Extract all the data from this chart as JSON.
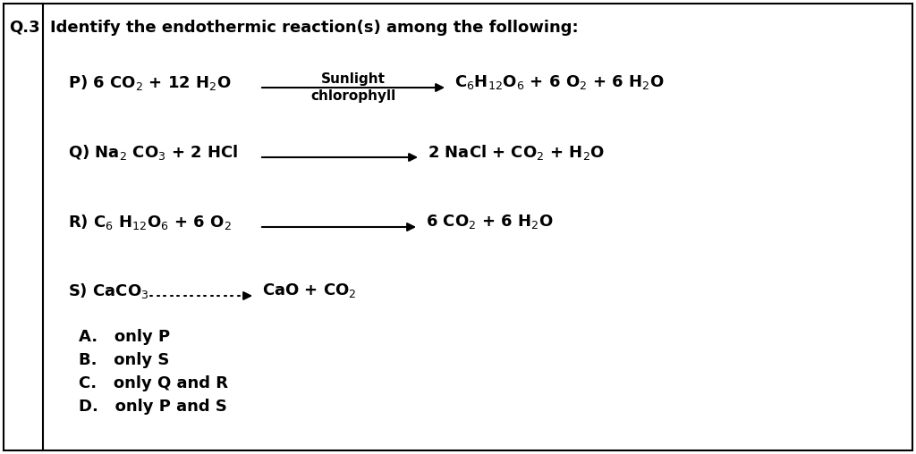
{
  "title": "Q.3",
  "question": "Identify the endothermic reaction(s) among the following:",
  "bg_color": "#ffffff",
  "border_color": "#000000",
  "text_color": "#000000",
  "options": [
    "A.   only P",
    "B.   only S",
    "C.   only Q and R",
    "D.   only P and S"
  ],
  "fig_width": 10.24,
  "fig_height": 5.08,
  "dpi": 100,
  "fontsize": 13,
  "fontsize_small": 11
}
